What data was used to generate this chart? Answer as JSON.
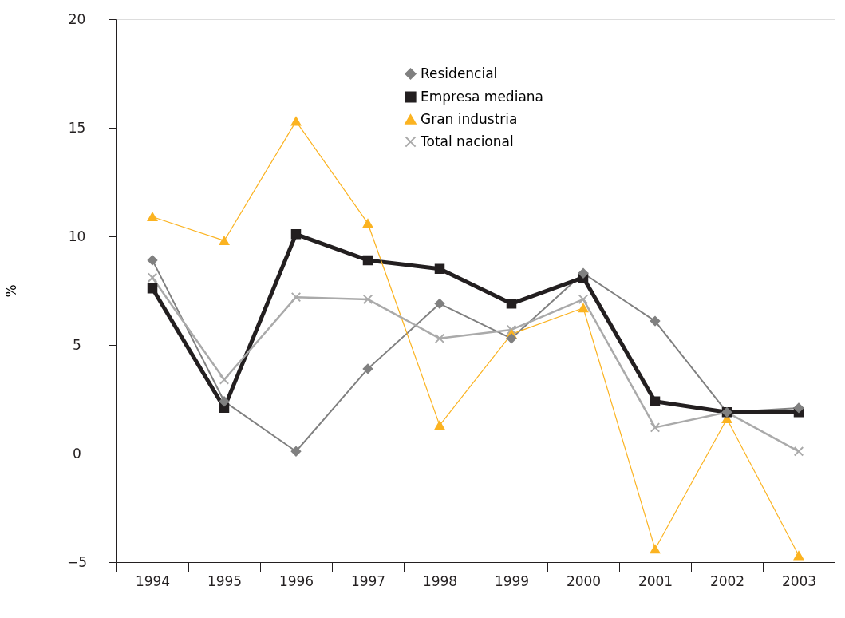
{
  "chart_data": {
    "type": "line",
    "ylabel": "%",
    "categories": [
      "1994",
      "1995",
      "1996",
      "1997",
      "1998",
      "1999",
      "2000",
      "2001",
      "2002",
      "2003"
    ],
    "series": [
      {
        "name": "Residencial",
        "color": "#808080",
        "marker": "diamond",
        "values": [
          8.9,
          2.4,
          0.1,
          3.9,
          6.9,
          5.3,
          8.3,
          6.1,
          1.9,
          2.1
        ]
      },
      {
        "name": "Empresa mediana",
        "color": "#231f20",
        "marker": "square",
        "values": [
          7.6,
          2.1,
          10.1,
          8.9,
          8.5,
          6.9,
          8.1,
          2.4,
          1.9,
          1.9
        ]
      },
      {
        "name": "Gran industria",
        "color": "#fbb321",
        "marker": "triangle",
        "values": [
          10.9,
          9.8,
          15.3,
          10.6,
          1.3,
          5.5,
          6.7,
          -4.4,
          1.6,
          -4.7
        ]
      },
      {
        "name": "Total nacional",
        "color": "#aaaaaa",
        "marker": "cross",
        "values": [
          8.1,
          3.4,
          7.2,
          7.1,
          5.3,
          5.7,
          7.1,
          1.2,
          1.9,
          0.1
        ]
      }
    ],
    "ylim": [
      -5,
      20
    ],
    "yticks": [
      -5,
      0,
      5,
      10,
      15,
      20
    ],
    "grid": false,
    "legend": "top"
  }
}
